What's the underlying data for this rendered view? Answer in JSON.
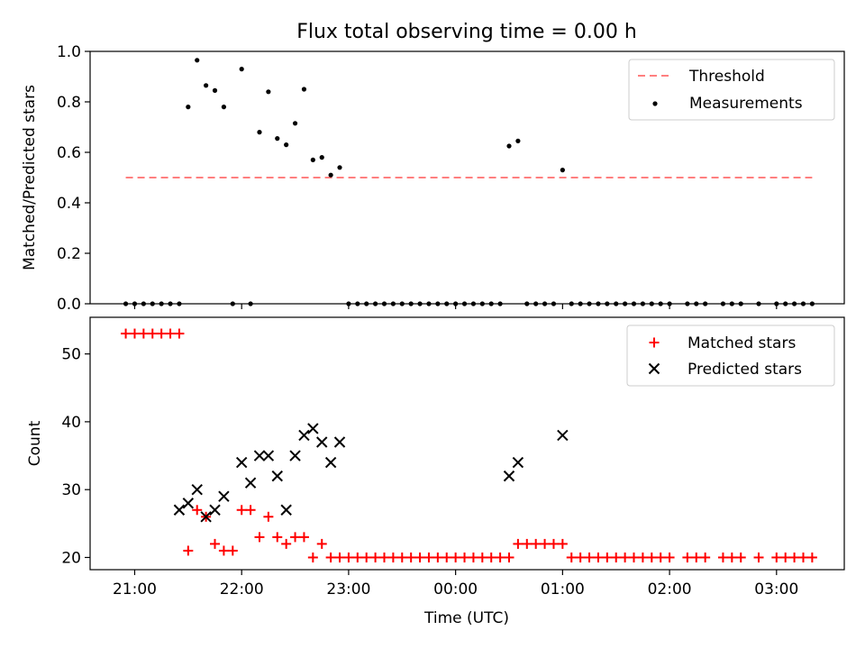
{
  "title": "Flux total observing time = 0.00 h",
  "colors": {
    "threshold": "#ff7f7f",
    "measurement": "#000000",
    "matched": "#ff0000",
    "predicted": "#000000"
  },
  "chart_data": [
    {
      "type": "scatter",
      "panel": "top",
      "ylabel": "Matched/Predicted stars",
      "ylim": [
        0,
        1.0
      ],
      "yticks": [
        "0.0",
        "0.2",
        "0.4",
        "0.6",
        "0.8",
        "1.0"
      ],
      "xlim": [
        "20:35",
        "03:38"
      ],
      "threshold": {
        "name": "Threshold",
        "value": 0.5,
        "x": [
          "20:55",
          "03:20"
        ]
      },
      "legend": "top-right",
      "series": [
        {
          "name": "Measurements",
          "x": [
            "20:55",
            "21:00",
            "21:05",
            "21:10",
            "21:15",
            "21:20",
            "21:25",
            "21:30",
            "21:35",
            "21:40",
            "21:45",
            "21:50",
            "21:55",
            "22:00",
            "22:05",
            "22:10",
            "22:15",
            "22:20",
            "22:25",
            "22:30",
            "22:35",
            "22:40",
            "22:45",
            "22:50",
            "22:55",
            "23:00",
            "23:05",
            "23:10",
            "23:15",
            "23:20",
            "23:25",
            "23:30",
            "23:35",
            "23:40",
            "23:45",
            "23:50",
            "23:55",
            "00:00",
            "00:05",
            "00:10",
            "00:15",
            "00:20",
            "00:25",
            "00:30",
            "00:35",
            "00:40",
            "00:45",
            "00:50",
            "00:55",
            "01:00",
            "01:05",
            "01:10",
            "01:15",
            "01:20",
            "01:25",
            "01:30",
            "01:35",
            "01:40",
            "01:45",
            "01:50",
            "01:55",
            "02:00",
            "02:10",
            "02:15",
            "02:20",
            "02:30",
            "02:35",
            "02:40",
            "02:50",
            "03:00",
            "03:05",
            "03:10",
            "03:15",
            "03:20"
          ],
          "y": [
            0.0,
            0.0,
            0.0,
            0.0,
            0.0,
            0.0,
            0.0,
            0.78,
            0.965,
            0.865,
            0.845,
            0.78,
            0.0,
            0.93,
            0.0,
            0.68,
            0.84,
            0.655,
            0.63,
            0.715,
            0.85,
            0.57,
            0.58,
            0.51,
            0.54,
            0.0,
            0.0,
            0.0,
            0.0,
            0.0,
            0.0,
            0.0,
            0.0,
            0.0,
            0.0,
            0.0,
            0.0,
            0.0,
            0.0,
            0.0,
            0.0,
            0.0,
            0.0,
            0.625,
            0.645,
            0.0,
            0.0,
            0.0,
            0.0,
            0.53,
            0.0,
            0.0,
            0.0,
            0.0,
            0.0,
            0.0,
            0.0,
            0.0,
            0.0,
            0.0,
            0.0,
            0.0,
            0.0,
            0.0,
            0.0,
            0.0,
            0.0,
            0.0,
            0.0,
            0.0,
            0.0,
            0.0,
            0.0,
            0.0
          ]
        }
      ]
    },
    {
      "type": "scatter",
      "panel": "bottom",
      "xlabel": "Time (UTC)",
      "ylabel": "Count",
      "ylim": [
        18.2,
        55.4
      ],
      "yticks": [
        "20",
        "30",
        "40",
        "50"
      ],
      "xticks": [
        "21:00",
        "22:00",
        "23:00",
        "00:00",
        "01:00",
        "02:00",
        "03:00"
      ],
      "xlim": [
        "20:35",
        "03:38"
      ],
      "legend": "top-right",
      "series": [
        {
          "name": "Matched stars",
          "marker": "+",
          "x": [
            "20:55",
            "21:00",
            "21:05",
            "21:10",
            "21:15",
            "21:20",
            "21:25",
            "21:30",
            "21:35",
            "21:40",
            "21:45",
            "21:50",
            "21:55",
            "22:00",
            "22:05",
            "22:10",
            "22:15",
            "22:20",
            "22:25",
            "22:30",
            "22:35",
            "22:40",
            "22:45",
            "22:50",
            "22:55",
            "23:00",
            "23:05",
            "23:10",
            "23:15",
            "23:20",
            "23:25",
            "23:30",
            "23:35",
            "23:40",
            "23:45",
            "23:50",
            "23:55",
            "00:00",
            "00:05",
            "00:10",
            "00:15",
            "00:20",
            "00:25",
            "00:30",
            "00:35",
            "00:40",
            "00:45",
            "00:50",
            "00:55",
            "01:00",
            "01:05",
            "01:10",
            "01:15",
            "01:20",
            "01:25",
            "01:30",
            "01:35",
            "01:40",
            "01:45",
            "01:50",
            "01:55",
            "02:00",
            "02:10",
            "02:15",
            "02:20",
            "02:30",
            "02:35",
            "02:40",
            "02:50",
            "03:00",
            "03:05",
            "03:10",
            "03:15",
            "03:20"
          ],
          "y": [
            53,
            53,
            53,
            53,
            53,
            53,
            53,
            21,
            27,
            26,
            22,
            21,
            21,
            27,
            27,
            23,
            26,
            23,
            22,
            23,
            23,
            20,
            22,
            20,
            20,
            20,
            20,
            20,
            20,
            20,
            20,
            20,
            20,
            20,
            20,
            20,
            20,
            20,
            20,
            20,
            20,
            20,
            20,
            20,
            22,
            22,
            22,
            22,
            22,
            22,
            20,
            20,
            20,
            20,
            20,
            20,
            20,
            20,
            20,
            20,
            20,
            20,
            20,
            20,
            20,
            20,
            20,
            20,
            20,
            20,
            20,
            20,
            20,
            20
          ]
        },
        {
          "name": "Predicted stars",
          "marker": "x",
          "x": [
            "21:25",
            "21:30",
            "21:35",
            "21:40",
            "21:45",
            "21:50",
            "22:00",
            "22:05",
            "22:10",
            "22:15",
            "22:20",
            "22:25",
            "22:30",
            "22:35",
            "22:40",
            "22:45",
            "22:50",
            "22:55",
            "00:30",
            "00:35",
            "01:00"
          ],
          "y": [
            27,
            28,
            30,
            26,
            27,
            29,
            34,
            31,
            35,
            35,
            32,
            27,
            35,
            38,
            39,
            37,
            34,
            37,
            32,
            34,
            38
          ]
        }
      ]
    }
  ]
}
